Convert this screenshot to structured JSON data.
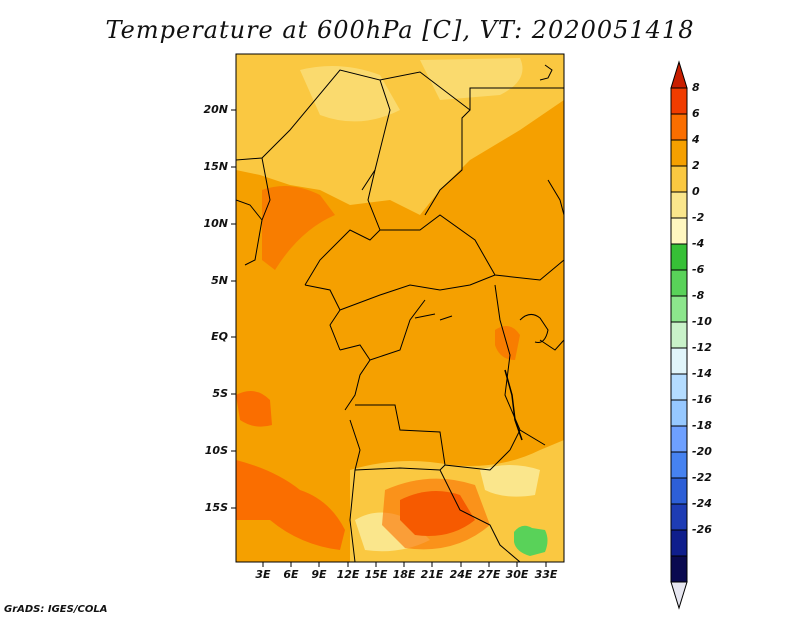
{
  "title": "Temperature at 600hPa [C], VT: 2020051418",
  "credit": "GrADS: IGES/COLA",
  "map": {
    "lat_labels": [
      "20N",
      "15N",
      "10N",
      "5N",
      "EQ",
      "5S",
      "10S",
      "15S"
    ],
    "lon_labels": [
      "3E",
      "6E",
      "9E",
      "12E",
      "15E",
      "18E",
      "21E",
      "24E",
      "27E",
      "30E",
      "33E"
    ]
  },
  "colorbar": {
    "labels": [
      "8",
      "6",
      "4",
      "2",
      "0",
      "-2",
      "-4",
      "-6",
      "-8",
      "-10",
      "-12",
      "-14",
      "-16",
      "-18",
      "-20",
      "-22",
      "-24",
      "-26"
    ],
    "colors": [
      "#c81e00",
      "#f03c00",
      "#fa6e00",
      "#f5a000",
      "#fac841",
      "#fae68c",
      "#fff7c0",
      "#36c036",
      "#59d259",
      "#8ce68c",
      "#c9f2c9",
      "#e1f5fa",
      "#b4dcff",
      "#96c8ff",
      "#6ea0ff",
      "#4682f0",
      "#2d5fd7",
      "#1e3cb4",
      "#0f1e8c",
      "#0a0a50",
      "#e6e6f0"
    ]
  },
  "colors": {
    "base": "#f5a000",
    "warm": "#fa6e00",
    "hot": "#f03c00",
    "light": "#fac841",
    "pale": "#fae68c",
    "green": "#59d259",
    "border": "#000000"
  }
}
